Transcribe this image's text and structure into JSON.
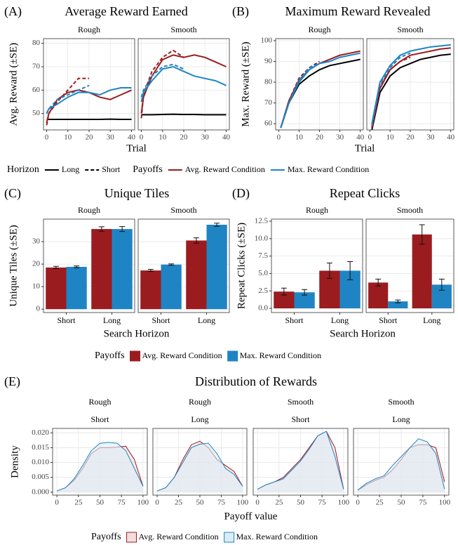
{
  "chart_data": [
    {
      "type": "line",
      "label": "(A)",
      "title": "Average Reward Earned",
      "xlabel": "Trial",
      "ylabel": "Avg. Reward (±SE)",
      "x": [
        0,
        1,
        5,
        10,
        15,
        20,
        25,
        30,
        35,
        40
      ],
      "xlim": [
        -1.5,
        41.5
      ],
      "xticks": [
        0,
        10,
        20,
        30,
        40
      ],
      "ylim": [
        43,
        82
      ],
      "yticks": [
        50,
        60,
        70,
        80
      ],
      "grid": true,
      "facets": [
        {
          "strip": [
            "Rough"
          ],
          "series": [
            {
              "color": "#000000",
              "linestyle": "solid",
              "values": [
                47.5,
                47.5,
                47.5,
                47.5,
                47.5,
                47.5,
                47.5,
                47.6,
                47.5,
                47.5
              ]
            },
            {
              "color": "#9b1c1f",
              "linestyle": "solid",
              "values": [
                46,
                50,
                56,
                59,
                60,
                59,
                57,
                56,
                58,
                60
              ]
            },
            {
              "color": "#9b1c1f",
              "linestyle": "dashed",
              "values": [
                45,
                50,
                55,
                60,
                65,
                65,
                null,
                null,
                null,
                null
              ]
            },
            {
              "color": "#1f84c4",
              "linestyle": "solid",
              "values": [
                50,
                52,
                54,
                57,
                59,
                59,
                58,
                60,
                61,
                61
              ]
            },
            {
              "color": "#1f84c4",
              "linestyle": "dashed",
              "values": [
                50,
                52,
                56,
                58,
                60,
                62,
                null,
                null,
                null,
                null
              ]
            }
          ]
        },
        {
          "strip": [
            "Smooth"
          ],
          "series": [
            {
              "color": "#000000",
              "linestyle": "solid",
              "values": [
                49.5,
                49.5,
                49.5,
                49.6,
                49.7,
                49.6,
                49.6,
                49.5,
                49.5,
                49.5
              ]
            },
            {
              "color": "#9b1c1f",
              "linestyle": "solid",
              "values": [
                50,
                57,
                66,
                73,
                75,
                74,
                75,
                74,
                72,
                70
              ]
            },
            {
              "color": "#9b1c1f",
              "linestyle": "dashed",
              "values": [
                48,
                58,
                68,
                74,
                77,
                74,
                null,
                null,
                null,
                null
              ]
            },
            {
              "color": "#1f84c4",
              "linestyle": "solid",
              "values": [
                55,
                59,
                64,
                69,
                70,
                68,
                66,
                65,
                64,
                62
              ]
            },
            {
              "color": "#1f84c4",
              "linestyle": "dashed",
              "values": [
                57,
                60,
                66,
                70,
                71,
                69,
                null,
                null,
                null,
                null
              ]
            }
          ]
        }
      ]
    },
    {
      "type": "line",
      "label": "(B)",
      "title": "Maximum Reward Revealed",
      "xlabel": "Trial",
      "ylabel": "Max. Reward (±SE)",
      "x": [
        1,
        5,
        10,
        15,
        20,
        25,
        30,
        35,
        40
      ],
      "xlim": [
        -1.5,
        41.5
      ],
      "xticks": [
        0,
        10,
        20,
        30,
        40
      ],
      "ylim": [
        57,
        101
      ],
      "yticks": [
        60,
        70,
        80,
        90,
        100
      ],
      "grid": true,
      "facets": [
        {
          "strip": [
            "Rough"
          ],
          "series": [
            {
              "color": "#000000",
              "linestyle": "solid",
              "values": [
                58,
                70,
                79,
                83,
                86,
                88,
                89,
                90,
                91
              ]
            },
            {
              "color": "#9b1c1f",
              "linestyle": "solid",
              "values": [
                58,
                71,
                81,
                86,
                89,
                91,
                93,
                94,
                95
              ]
            },
            {
              "color": "#9b1c1f",
              "linestyle": "dashed",
              "values": [
                58,
                71,
                82,
                87,
                90,
                null,
                null,
                null,
                null
              ]
            },
            {
              "color": "#1f84c4",
              "linestyle": "solid",
              "values": [
                58,
                70,
                80,
                86,
                89,
                90,
                92,
                93,
                94
              ]
            },
            {
              "color": "#1f84c4",
              "linestyle": "dashed",
              "values": [
                58,
                70,
                81,
                87,
                89,
                null,
                null,
                null,
                null
              ]
            }
          ]
        },
        {
          "strip": [
            "Smooth"
          ],
          "series": [
            {
              "color": "#000000",
              "linestyle": "solid",
              "values": [
                57,
                75,
                83,
                87,
                89,
                91,
                92,
                93,
                93.5
              ]
            },
            {
              "color": "#9b1c1f",
              "linestyle": "solid",
              "values": [
                58,
                77,
                86,
                90,
                93,
                94,
                95,
                96,
                96.5
              ]
            },
            {
              "color": "#9b1c1f",
              "linestyle": "dashed",
              "values": [
                58,
                78,
                86,
                90,
                92,
                null,
                null,
                null,
                null
              ]
            },
            {
              "color": "#1f84c4",
              "linestyle": "solid",
              "values": [
                60,
                80,
                88,
                93,
                95,
                96,
                97,
                97.5,
                98
              ]
            },
            {
              "color": "#1f84c4",
              "linestyle": "dashed",
              "values": [
                59,
                79,
                87,
                92,
                94,
                null,
                null,
                null,
                null
              ]
            }
          ]
        }
      ]
    },
    {
      "type": "bar",
      "label": "(C)",
      "title": "Unique Tiles",
      "xlabel": "Search Horizon",
      "ylabel": "Unique Tiles (±SE)",
      "categories": [
        "Short",
        "Long"
      ],
      "ylim": [
        -1.5,
        40
      ],
      "yticks": [
        0,
        10,
        20,
        30
      ],
      "grid": true,
      "facets": [
        {
          "strip": [
            "Rough"
          ],
          "series": [
            {
              "color": "#9b1c1f",
              "values": [
                18.5,
                35.6
              ],
              "errors": [
                0.5,
                1.0
              ]
            },
            {
              "color": "#1f84c4",
              "values": [
                18.8,
                35.6
              ],
              "errors": [
                0.4,
                1.1
              ]
            }
          ]
        },
        {
          "strip": [
            "Smooth"
          ],
          "series": [
            {
              "color": "#9b1c1f",
              "values": [
                17.2,
                30.5
              ],
              "errors": [
                0.5,
                1.2
              ]
            },
            {
              "color": "#1f84c4",
              "values": [
                19.8,
                37.5
              ],
              "errors": [
                0.3,
                0.7
              ]
            }
          ]
        }
      ]
    },
    {
      "type": "bar",
      "label": "(D)",
      "title": "Repeat Clicks",
      "xlabel": "Search Horizon",
      "ylabel": "Repeat Clicks (±SE)",
      "categories": [
        "Short",
        "Long"
      ],
      "ylim": [
        -0.6,
        12.8
      ],
      "yticks": [
        {
          "value": 0,
          "label": "0.0"
        },
        2.5,
        {
          "value": 5,
          "label": "5.0"
        },
        7.5,
        {
          "value": 10,
          "label": "10.0"
        },
        12.5
      ],
      "grid": true,
      "facets": [
        {
          "strip": [
            "Rough"
          ],
          "series": [
            {
              "color": "#9b1c1f",
              "values": [
                2.4,
                5.4
              ],
              "errors": [
                0.5,
                1.1
              ]
            },
            {
              "color": "#1f84c4",
              "values": [
                2.3,
                5.4
              ],
              "errors": [
                0.4,
                1.3
              ]
            }
          ]
        },
        {
          "strip": [
            "Smooth"
          ],
          "series": [
            {
              "color": "#9b1c1f",
              "values": [
                3.7,
                10.6
              ],
              "errors": [
                0.5,
                1.4
              ]
            },
            {
              "color": "#1f84c4",
              "values": [
                1.0,
                3.4
              ],
              "errors": [
                0.2,
                0.8
              ]
            }
          ]
        }
      ]
    },
    {
      "type": "area",
      "label": "(E)",
      "title": "Distribution of Rewards",
      "xlabel": "Payoff value",
      "ylabel": "Density",
      "x": [
        0,
        10,
        20,
        30,
        40,
        50,
        60,
        70,
        80,
        90,
        100
      ],
      "xlim": [
        -5,
        105
      ],
      "xticks": [
        0,
        25,
        50,
        75,
        100
      ],
      "ylim": [
        -0.001,
        0.0215
      ],
      "yticks": [
        {
          "value": 0,
          "label": "0.000"
        },
        {
          "value": 0.005,
          "label": "0.005"
        },
        {
          "value": 0.01,
          "label": "0.010"
        },
        {
          "value": 0.015,
          "label": "0.015"
        },
        {
          "value": 0.02,
          "label": "0.020"
        }
      ],
      "grid": true,
      "facets": [
        {
          "strip": [
            "Rough",
            "Short"
          ],
          "series": [
            {
              "color": "#9b1c1f",
              "fill": "#f2dede",
              "values": [
                0.0004,
                0.0015,
                0.004,
                0.008,
                0.013,
                0.015,
                0.015,
                0.0152,
                0.0155,
                0.011,
                0.002
              ]
            },
            {
              "color": "#1f84c4",
              "fill": "#dcecf6",
              "values": [
                0.0004,
                0.0015,
                0.0045,
                0.009,
                0.014,
                0.0165,
                0.0168,
                0.0165,
                0.014,
                0.008,
                0.002
              ]
            }
          ]
        },
        {
          "strip": [
            "Rough",
            "Long"
          ],
          "series": [
            {
              "color": "#9b1c1f",
              "fill": "#f2dede",
              "values": [
                0.0004,
                0.0015,
                0.005,
                0.011,
                0.016,
                0.0172,
                0.015,
                0.011,
                0.009,
                0.007,
                0.002
              ]
            },
            {
              "color": "#1f84c4",
              "fill": "#dcecf6",
              "values": [
                0.0004,
                0.0015,
                0.005,
                0.01,
                0.015,
                0.0162,
                0.0165,
                0.013,
                0.008,
                0.006,
                0.002
              ]
            }
          ]
        },
        {
          "strip": [
            "Smooth",
            "Short"
          ],
          "series": [
            {
              "color": "#9b1c1f",
              "fill": "#f2dede",
              "values": [
                0.001,
                0.0025,
                0.0035,
                0.005,
                0.008,
                0.011,
                0.015,
                0.019,
                0.0205,
                0.015,
                0.001
              ]
            },
            {
              "color": "#1f84c4",
              "fill": "#dcecf6",
              "values": [
                0.001,
                0.0025,
                0.0035,
                0.0045,
                0.0075,
                0.0105,
                0.0145,
                0.019,
                0.0205,
                0.012,
                0.001
              ]
            }
          ]
        },
        {
          "strip": [
            "Smooth",
            "Long"
          ],
          "series": [
            {
              "color": "#9b1c1f",
              "fill": "#f2dede",
              "values": [
                0.0007,
                0.0025,
                0.004,
                0.005,
                0.0075,
                0.011,
                0.015,
                0.016,
                0.016,
                0.015,
                0.0035
              ]
            },
            {
              "color": "#1f84c4",
              "fill": "#dcecf6",
              "values": [
                0.0007,
                0.003,
                0.0045,
                0.0055,
                0.009,
                0.012,
                0.015,
                0.018,
                0.017,
                0.013,
                0.001
              ]
            }
          ]
        }
      ]
    }
  ],
  "legends": [
    {
      "key": "line",
      "groups": [
        {
          "title": "Horizon",
          "entries": [
            {
              "label": "Long",
              "color": "#000000",
              "linestyle": "solid"
            },
            {
              "label": "Short",
              "color": "#000000",
              "linestyle": "dashed"
            }
          ]
        },
        {
          "title": "Payoffs",
          "entries": [
            {
              "label": "Avg. Reward Condition",
              "color": "#9b1c1f",
              "linestyle": "solid"
            },
            {
              "label": "Max. Reward Condition",
              "color": "#1f84c4",
              "linestyle": "solid"
            }
          ]
        }
      ]
    },
    {
      "key": "box",
      "groups": [
        {
          "title": "Payoffs",
          "entries": [
            {
              "label": "Avg. Reward Condition",
              "color": "#9b1c1f",
              "fill": "#9b1c1f"
            },
            {
              "label": "Max. Reward Condition",
              "color": "#1f84c4",
              "fill": "#1f84c4"
            }
          ]
        }
      ]
    },
    {
      "key": "box",
      "groups": [
        {
          "title": "Payoffs",
          "entries": [
            {
              "label": "Avg. Reward Condition",
              "color": "#9b1c1f",
              "fill": "#f2dede"
            },
            {
              "label": "Max. Reward Condition",
              "color": "#1f84c4",
              "fill": "#dcecf6"
            }
          ]
        }
      ]
    }
  ]
}
